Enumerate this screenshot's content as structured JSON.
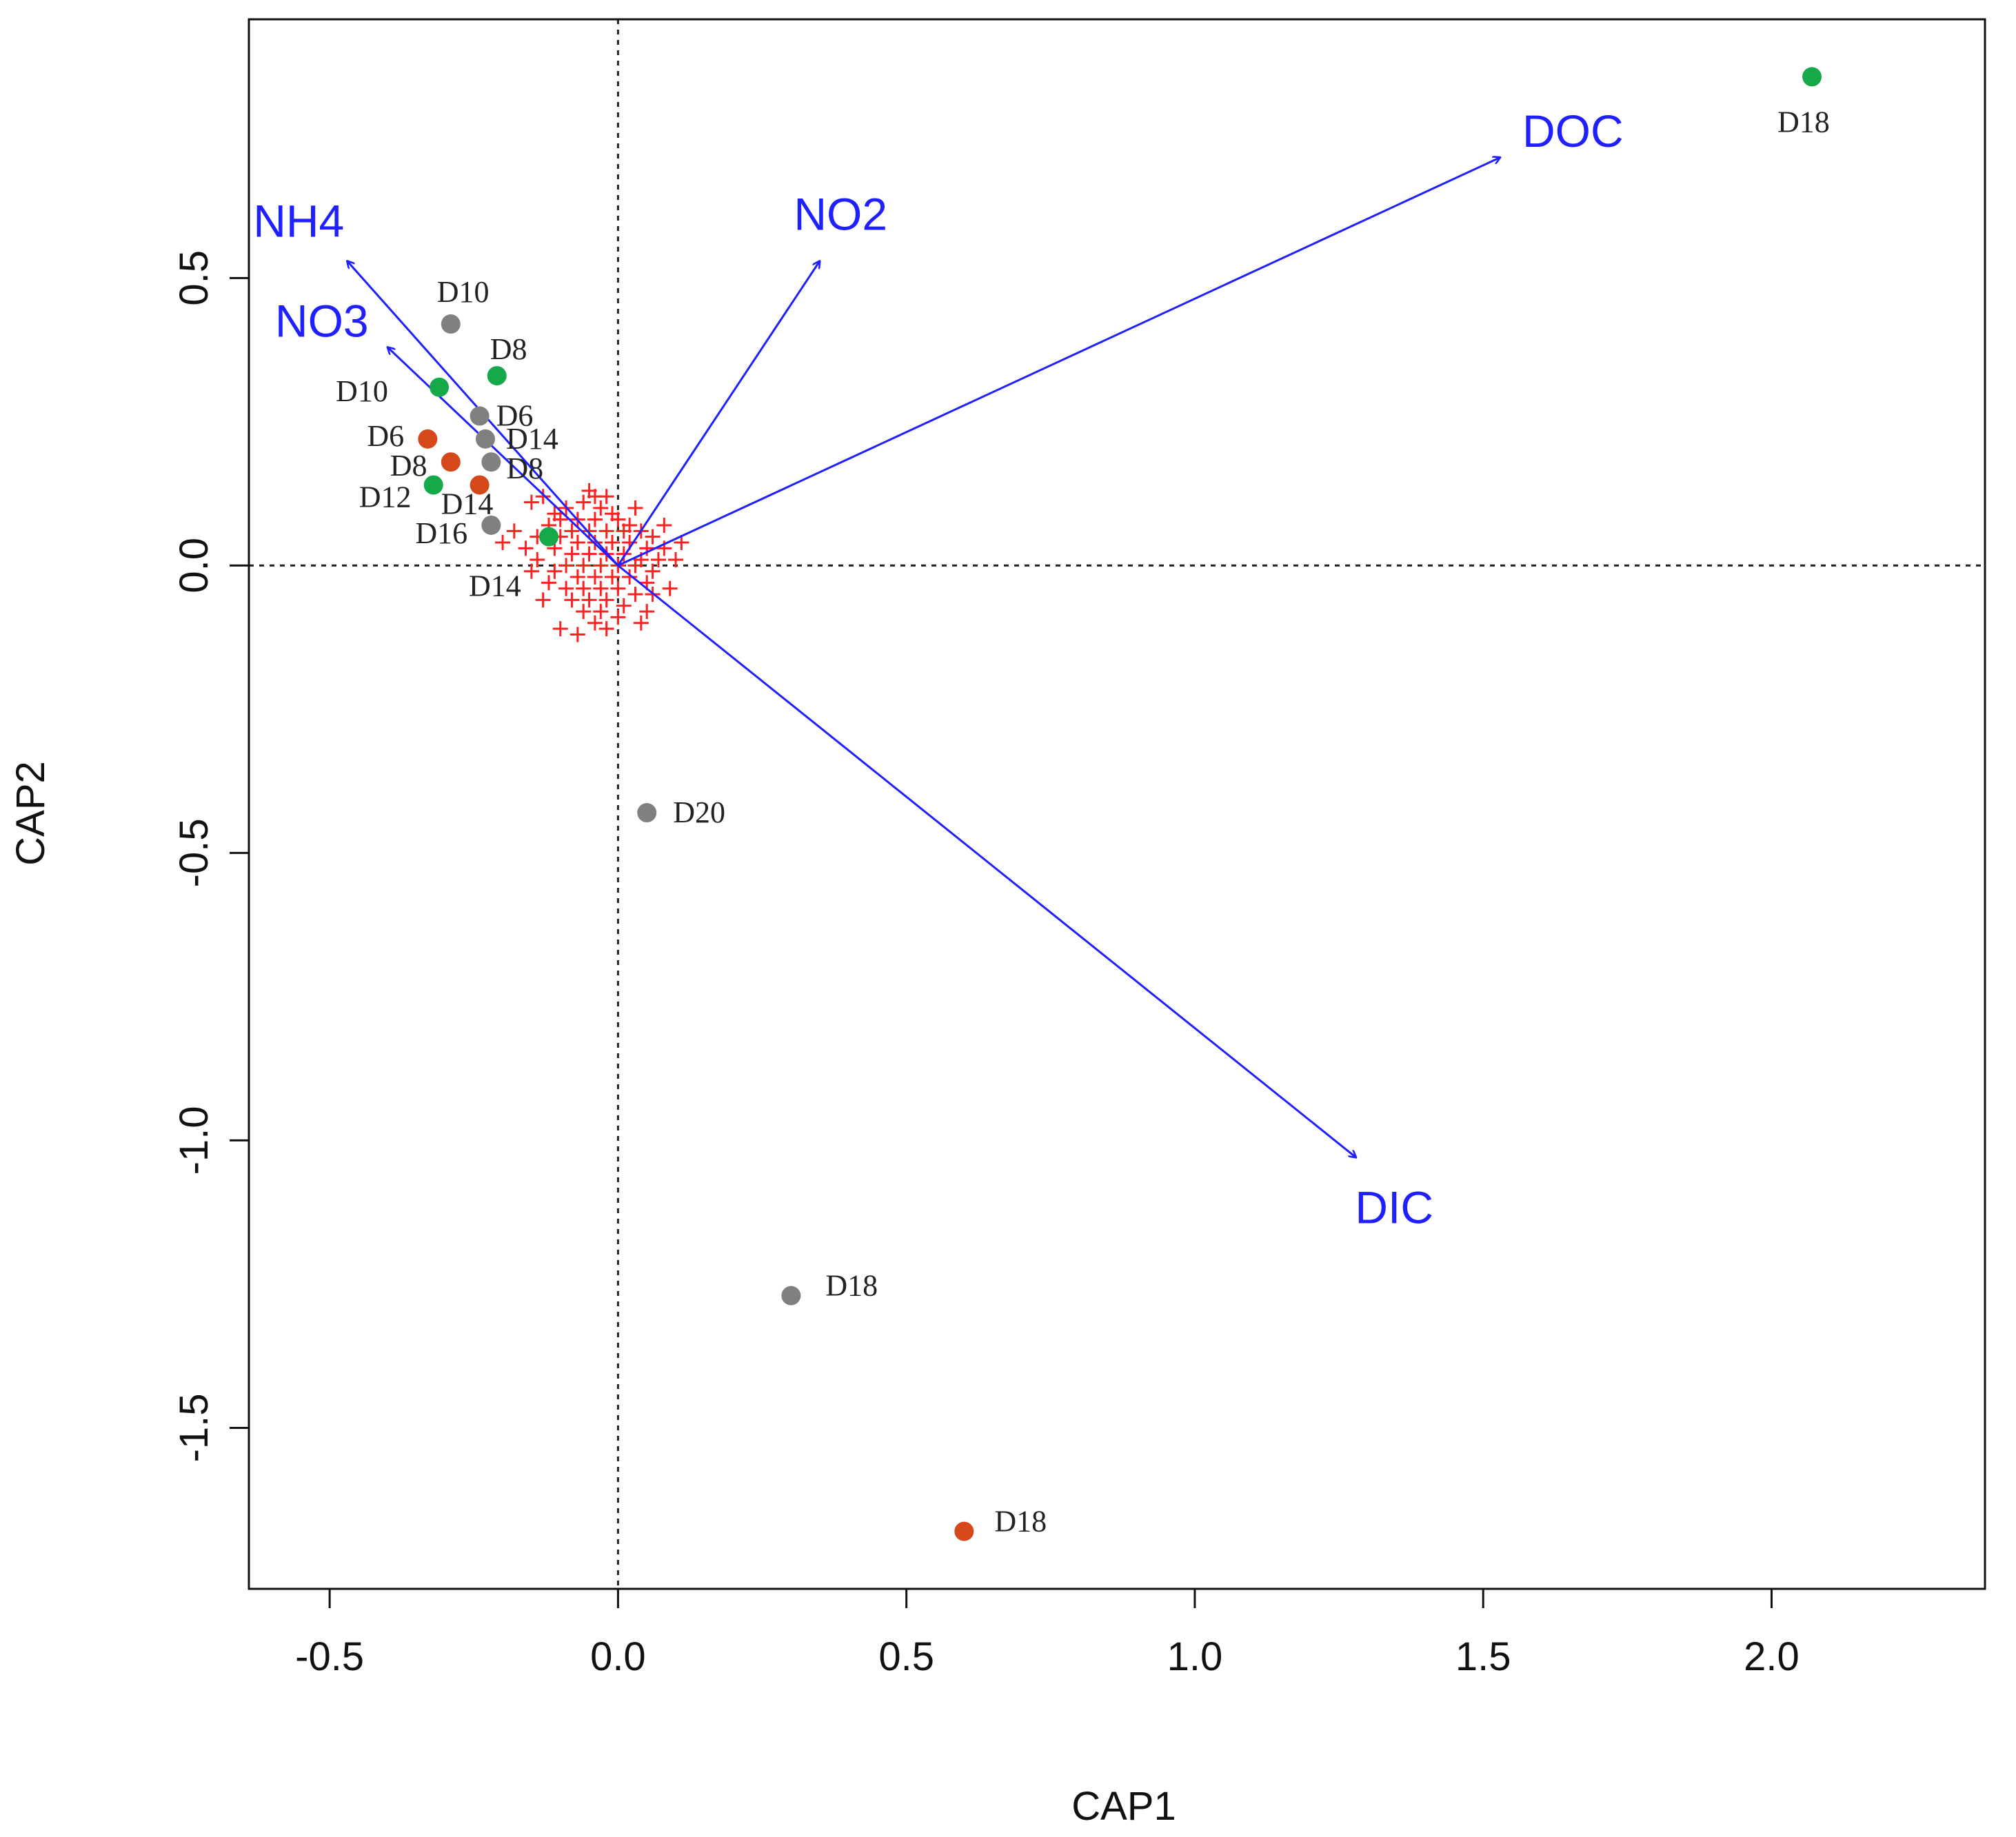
{
  "chart_data": {
    "type": "scatter",
    "title": "",
    "xlabel": "CAP1",
    "ylabel": "CAP2",
    "xlim": [
      -0.64,
      2.37
    ],
    "ylim": [
      -1.78,
      0.95
    ],
    "xticks": [
      -0.5,
      0.0,
      0.5,
      1.0,
      1.5,
      2.0
    ],
    "xtick_labels": [
      "-0.5",
      "0.0",
      "0.5",
      "1.0",
      "1.5",
      "2.0"
    ],
    "yticks": [
      -1.5,
      -1.0,
      -0.5,
      0.0,
      0.5
    ],
    "ytick_labels": [
      "-1.5",
      "-1.0",
      "-0.5",
      "0.0",
      "0.5"
    ],
    "reference_lines": {
      "x": 0,
      "y": 0,
      "style": "dotted"
    },
    "colors": {
      "grey": "#808080",
      "orange": "#d4481a",
      "green": "#16a94a",
      "species": "#ff2020",
      "vector": "#1f1fff"
    },
    "vectors": [
      {
        "name": "NH4",
        "x": -0.47,
        "y": 0.53
      },
      {
        "name": "NO3",
        "x": -0.4,
        "y": 0.38
      },
      {
        "name": "NO2",
        "x": 0.35,
        "y": 0.53
      },
      {
        "name": "DOC",
        "x": 1.53,
        "y": 0.71
      },
      {
        "name": "DIC",
        "x": 1.28,
        "y": -1.03
      }
    ],
    "sites": [
      {
        "label": "D10",
        "x": -0.29,
        "y": 0.42,
        "group": "grey"
      },
      {
        "label": "D8",
        "x": -0.21,
        "y": 0.33,
        "group": "green"
      },
      {
        "label": "D10",
        "x": -0.31,
        "y": 0.31,
        "group": "green"
      },
      {
        "label": "D6",
        "x": -0.24,
        "y": 0.26,
        "group": "grey"
      },
      {
        "label": "D14",
        "x": -0.23,
        "y": 0.22,
        "group": "grey"
      },
      {
        "label": "D6",
        "x": -0.33,
        "y": 0.22,
        "group": "orange"
      },
      {
        "label": "D8",
        "x": -0.29,
        "y": 0.18,
        "group": "orange"
      },
      {
        "label": "D8",
        "x": -0.22,
        "y": 0.18,
        "group": "grey"
      },
      {
        "label": "D12",
        "x": -0.32,
        "y": 0.14,
        "group": "green"
      },
      {
        "label": "D14",
        "x": -0.24,
        "y": 0.14,
        "group": "orange"
      },
      {
        "label": "D16",
        "x": -0.22,
        "y": 0.07,
        "group": "grey"
      },
      {
        "label": "D14",
        "x": -0.12,
        "y": 0.05,
        "group": "green"
      },
      {
        "label": "D20",
        "x": 0.05,
        "y": -0.43,
        "group": "grey"
      },
      {
        "label": "D18",
        "x": 0.3,
        "y": -1.27,
        "group": "grey"
      },
      {
        "label": "D18",
        "x": 0.6,
        "y": -1.68,
        "group": "orange"
      },
      {
        "label": "D18",
        "x": 2.07,
        "y": 0.85,
        "group": "green"
      }
    ],
    "species": [
      [
        -0.04,
        0.12
      ],
      [
        -0.06,
        0.11
      ],
      [
        -0.02,
        0.12
      ],
      [
        -0.09,
        0.1
      ],
      [
        -0.03,
        0.1
      ],
      [
        -0.01,
        0.09
      ],
      [
        -0.1,
        0.08
      ],
      [
        -0.07,
        0.08
      ],
      [
        -0.04,
        0.08
      ],
      [
        0.0,
        0.08
      ],
      [
        0.02,
        0.07
      ],
      [
        -0.12,
        0.07
      ],
      [
        -0.08,
        0.06
      ],
      [
        -0.05,
        0.06
      ],
      [
        -0.02,
        0.06
      ],
      [
        0.01,
        0.06
      ],
      [
        0.04,
        0.06
      ],
      [
        0.06,
        0.05
      ],
      [
        -0.14,
        0.05
      ],
      [
        -0.1,
        0.05
      ],
      [
        -0.07,
        0.04
      ],
      [
        -0.04,
        0.04
      ],
      [
        -0.01,
        0.04
      ],
      [
        0.02,
        0.04
      ],
      [
        0.05,
        0.03
      ],
      [
        0.08,
        0.03
      ],
      [
        -0.16,
        0.03
      ],
      [
        -0.11,
        0.03
      ],
      [
        -0.08,
        0.02
      ],
      [
        -0.05,
        0.02
      ],
      [
        -0.02,
        0.02
      ],
      [
        0.01,
        0.02
      ],
      [
        0.04,
        0.01
      ],
      [
        0.07,
        0.01
      ],
      [
        0.1,
        0.01
      ],
      [
        -0.14,
        0.01
      ],
      [
        -0.09,
        0.0
      ],
      [
        -0.06,
        0.0
      ],
      [
        -0.03,
        0.0
      ],
      [
        0.0,
        0.0
      ],
      [
        0.03,
        0.0
      ],
      [
        0.06,
        -0.01
      ],
      [
        -0.15,
        -0.01
      ],
      [
        -0.11,
        -0.01
      ],
      [
        -0.07,
        -0.02
      ],
      [
        -0.04,
        -0.02
      ],
      [
        -0.01,
        -0.02
      ],
      [
        0.02,
        -0.02
      ],
      [
        0.05,
        -0.03
      ],
      [
        -0.12,
        -0.03
      ],
      [
        -0.09,
        -0.04
      ],
      [
        -0.06,
        -0.04
      ],
      [
        -0.03,
        -0.04
      ],
      [
        0.0,
        -0.04
      ],
      [
        0.03,
        -0.05
      ],
      [
        0.06,
        -0.05
      ],
      [
        -0.08,
        -0.06
      ],
      [
        -0.05,
        -0.06
      ],
      [
        -0.02,
        -0.06
      ],
      [
        0.01,
        -0.07
      ],
      [
        -0.06,
        -0.08
      ],
      [
        -0.03,
        -0.08
      ],
      [
        0.0,
        -0.09
      ],
      [
        -0.04,
        -0.1
      ],
      [
        0.05,
        -0.08
      ],
      [
        0.09,
        -0.04
      ],
      [
        -0.11,
        0.09
      ],
      [
        -0.15,
        0.11
      ],
      [
        -0.18,
        0.06
      ],
      [
        -0.2,
        0.04
      ],
      [
        -0.13,
        -0.06
      ],
      [
        -0.1,
        -0.11
      ],
      [
        -0.07,
        -0.12
      ],
      [
        0.08,
        0.07
      ],
      [
        0.11,
        0.04
      ],
      [
        -0.05,
        0.13
      ],
      [
        -0.13,
        0.12
      ],
      [
        0.03,
        0.1
      ],
      [
        -0.02,
        -0.11
      ],
      [
        0.04,
        -0.1
      ]
    ]
  }
}
